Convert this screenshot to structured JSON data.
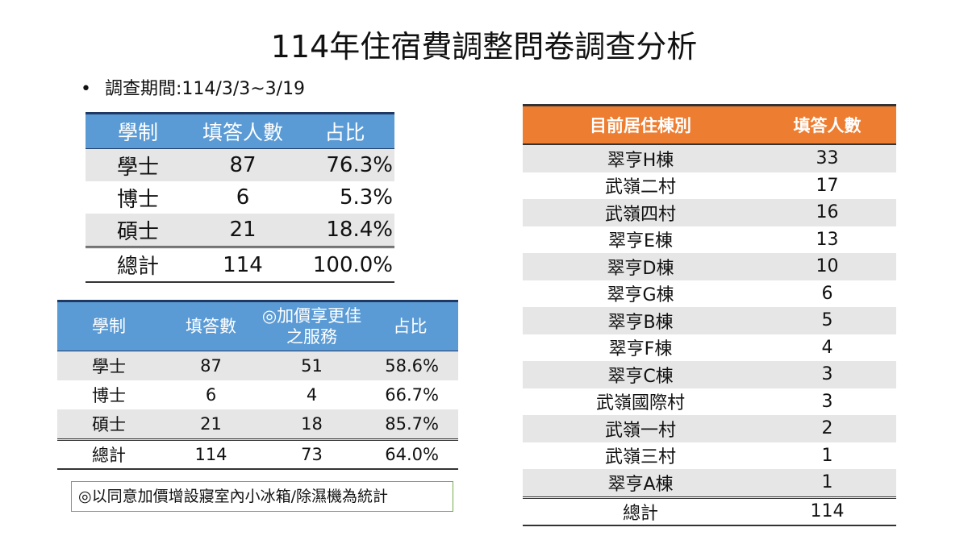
{
  "title": "114年住宿費調整問卷調查分析",
  "bullet": {
    "symbol": "•",
    "text": "調查期間:114/3/3~3/19"
  },
  "table1": {
    "headers": [
      "學制",
      "填答人數",
      "占比"
    ],
    "rows": [
      [
        "學士",
        "87",
        "76.3%"
      ],
      [
        "博士",
        "6",
        "5.3%"
      ],
      [
        "碩士",
        "21",
        "18.4%"
      ],
      [
        "總計",
        "114",
        "100.0%"
      ]
    ]
  },
  "table2": {
    "headers": [
      "學制",
      "填答數",
      "◎加價享更佳之服務",
      "占比"
    ],
    "rows": [
      [
        "學士",
        "87",
        "51",
        "58.6%"
      ],
      [
        "博士",
        "6",
        "4",
        "66.7%"
      ],
      [
        "碩士",
        "21",
        "18",
        "85.7%"
      ],
      [
        "總計",
        "114",
        "73",
        "64.0%"
      ]
    ]
  },
  "note": "◎以同意加價增設寢室內小冰箱/除濕機為統計",
  "table3": {
    "headers": [
      "目前居住棟別",
      "填答人數"
    ],
    "rows": [
      [
        "翠亨H棟",
        "33"
      ],
      [
        "武嶺二村",
        "17"
      ],
      [
        "武嶺四村",
        "16"
      ],
      [
        "翠亨E棟",
        "13"
      ],
      [
        "翠亨D棟",
        "10"
      ],
      [
        "翠亨G棟",
        "6"
      ],
      [
        "翠亨B棟",
        "5"
      ],
      [
        "翠亨F棟",
        "4"
      ],
      [
        "翠亨C棟",
        "3"
      ],
      [
        "武嶺國際村",
        "3"
      ],
      [
        "武嶺一村",
        "2"
      ],
      [
        "武嶺三村",
        "1"
      ],
      [
        "翠亨A棟",
        "1"
      ],
      [
        "總計",
        "114"
      ]
    ]
  },
  "colors": {
    "blue_header": "#5b9bd5",
    "orange_header": "#ed7d31",
    "row_shade": "#e7e6e6",
    "note_border": "#70ad47"
  }
}
